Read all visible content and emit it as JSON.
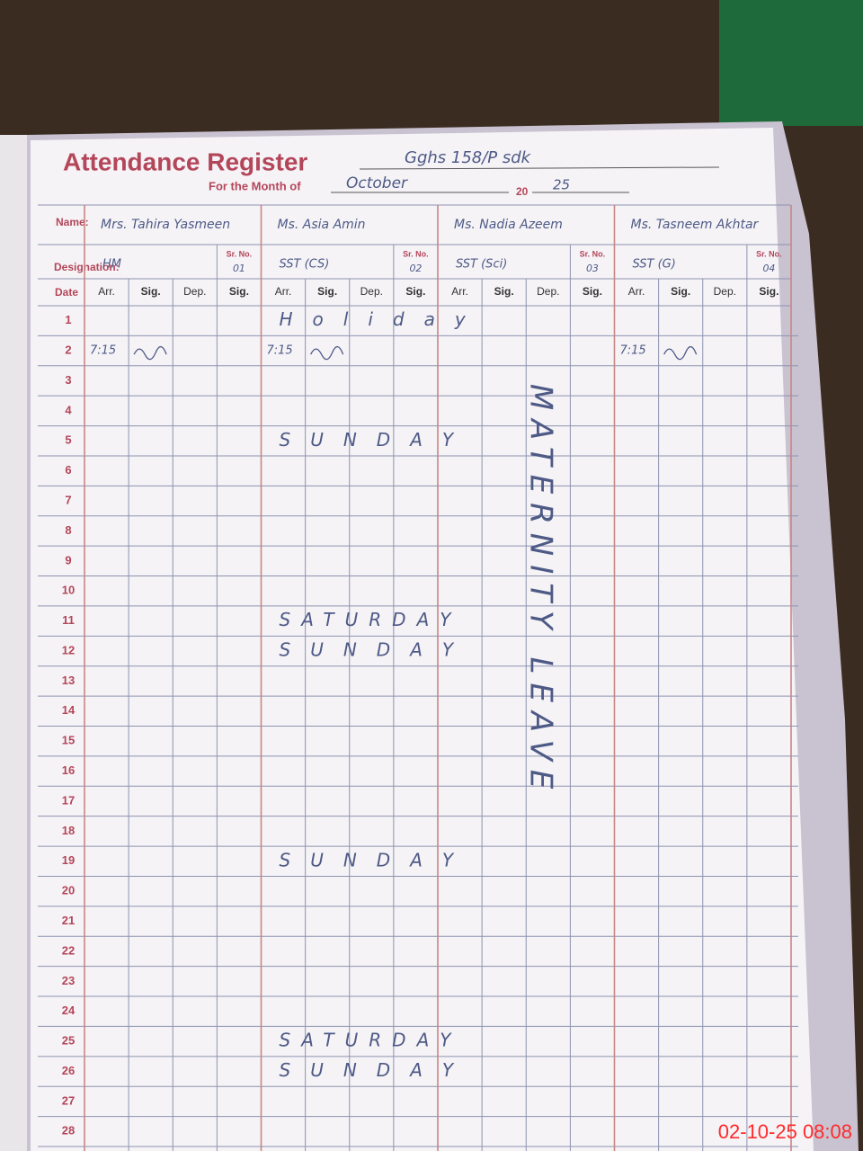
{
  "header": {
    "title": "Attendance Register",
    "school": "Gghs 158/P sdk",
    "month_label": "For the Month of",
    "month": "October",
    "year_prefix": "20",
    "year": "25"
  },
  "labels": {
    "name": "Name:",
    "designation": "Designation:",
    "sr_no": "Sr. No.",
    "date": "Date",
    "columns": [
      "Arr.",
      "Sig.",
      "Dep.",
      "Sig."
    ]
  },
  "staff": [
    {
      "name": "Mrs. Tahira Yasmeen",
      "designation": "HM",
      "sr_no": "01"
    },
    {
      "name": "Ms. Asia Amin",
      "designation": "SST (CS)",
      "sr_no": "02"
    },
    {
      "name": "Ms. Nadia Azeem",
      "designation": "SST (Sci)",
      "sr_no": "03"
    },
    {
      "name": "Ms. Tasneem Akhtar",
      "designation": "SST (G)",
      "sr_no": "04"
    }
  ],
  "rows": [
    {
      "date": "1",
      "note": "Holiday"
    },
    {
      "date": "2",
      "arrivals": [
        "7:15",
        "7:15",
        null,
        "7:15"
      ]
    },
    {
      "date": "3"
    },
    {
      "date": "4"
    },
    {
      "date": "5",
      "note": "SUNDAY"
    },
    {
      "date": "6"
    },
    {
      "date": "7"
    },
    {
      "date": "8"
    },
    {
      "date": "9"
    },
    {
      "date": "10"
    },
    {
      "date": "11",
      "note": "SATURDAY"
    },
    {
      "date": "12",
      "note": "SUNDAY"
    },
    {
      "date": "13"
    },
    {
      "date": "14"
    },
    {
      "date": "15"
    },
    {
      "date": "16"
    },
    {
      "date": "17"
    },
    {
      "date": "18"
    },
    {
      "date": "19",
      "note": "SUNDAY"
    },
    {
      "date": "20"
    },
    {
      "date": "21"
    },
    {
      "date": "22"
    },
    {
      "date": "23"
    },
    {
      "date": "24"
    },
    {
      "date": "25",
      "note": "SATURDAY"
    },
    {
      "date": "26",
      "note": "SUNDAY"
    },
    {
      "date": "27"
    },
    {
      "date": "28"
    }
  ],
  "leave": {
    "text": "MATERNITY LEAVE"
  },
  "timestamp": "02-10-25 08:08"
}
